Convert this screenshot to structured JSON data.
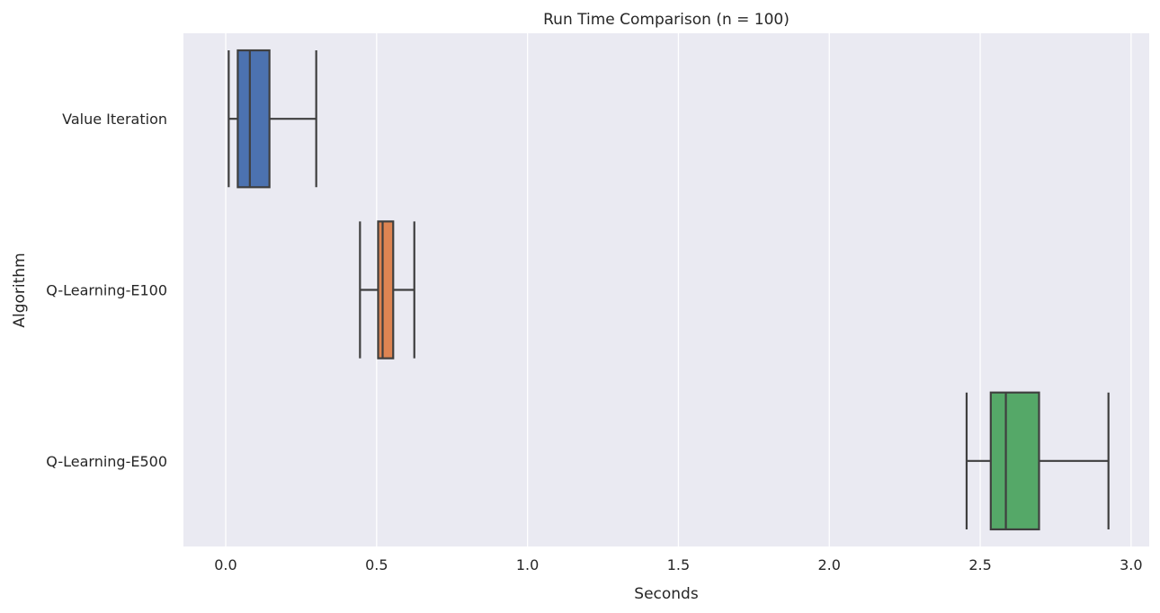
{
  "chart_data": {
    "type": "boxplot",
    "orientation": "horizontal",
    "title": "Run Time Comparison (n = 100)",
    "xlabel": "Seconds",
    "ylabel": "Algorithm",
    "xlim": [
      -0.14,
      3.06
    ],
    "xticks": [
      0.0,
      0.5,
      1.0,
      1.5,
      2.0,
      2.5,
      3.0
    ],
    "xtick_labels": [
      "0.0",
      "0.5",
      "1.0",
      "1.5",
      "2.0",
      "2.5",
      "3.0"
    ],
    "grid": true,
    "legend": "none",
    "categories": [
      "Value Iteration",
      "Q-Learning-E100",
      "Q-Learning-E500"
    ],
    "series": [
      {
        "category": "Value Iteration",
        "whisker_low": 0.01,
        "q1": 0.04,
        "median": 0.08,
        "q3": 0.145,
        "whisker_high": 0.3,
        "color": "#4c72b0"
      },
      {
        "category": "Q-Learning-E100",
        "whisker_low": 0.445,
        "q1": 0.505,
        "median": 0.52,
        "q3": 0.555,
        "whisker_high": 0.625,
        "color": "#dd8452"
      },
      {
        "category": "Q-Learning-E500",
        "whisker_low": 2.455,
        "q1": 2.535,
        "median": 2.585,
        "q3": 2.695,
        "whisker_high": 2.925,
        "color": "#55a868"
      }
    ],
    "colors": {
      "background": "#eaeaf2",
      "grid": "#ffffff",
      "box_edge": "#3f3f3f"
    }
  }
}
